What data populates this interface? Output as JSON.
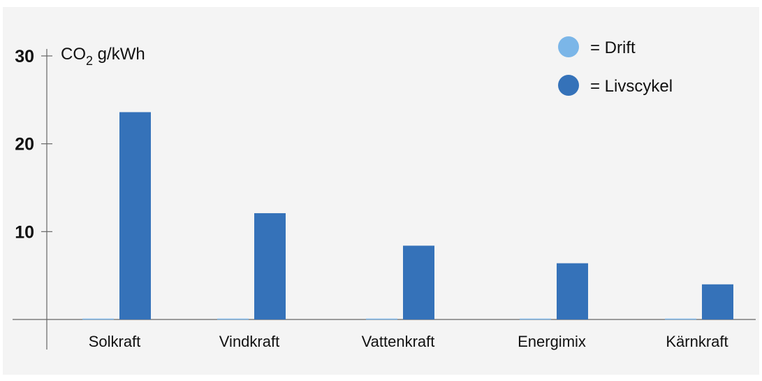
{
  "chart_data": {
    "type": "bar",
    "ylabel_main": "CO",
    "ylabel_sub": "2",
    "ylabel_rest": " g/kWh",
    "ylim": [
      0,
      30
    ],
    "yticks": [
      "10",
      "20",
      "30"
    ],
    "categories": [
      "Solkraft",
      "Vindkraft",
      "Vattenkraft",
      "Energimix",
      "Kärnkraft"
    ],
    "series": [
      {
        "name": "Drift",
        "legend_text": "= Drift",
        "color": "#7bb6e8",
        "values": [
          0.1,
          0.1,
          0.1,
          0.1,
          0.1
        ]
      },
      {
        "name": "Livscykel",
        "legend_text": "= Livscykel",
        "color": "#3572b9",
        "values": [
          23.6,
          12.1,
          8.4,
          6.4,
          4.0
        ]
      }
    ],
    "legend_position": "top-right",
    "grid": false
  }
}
